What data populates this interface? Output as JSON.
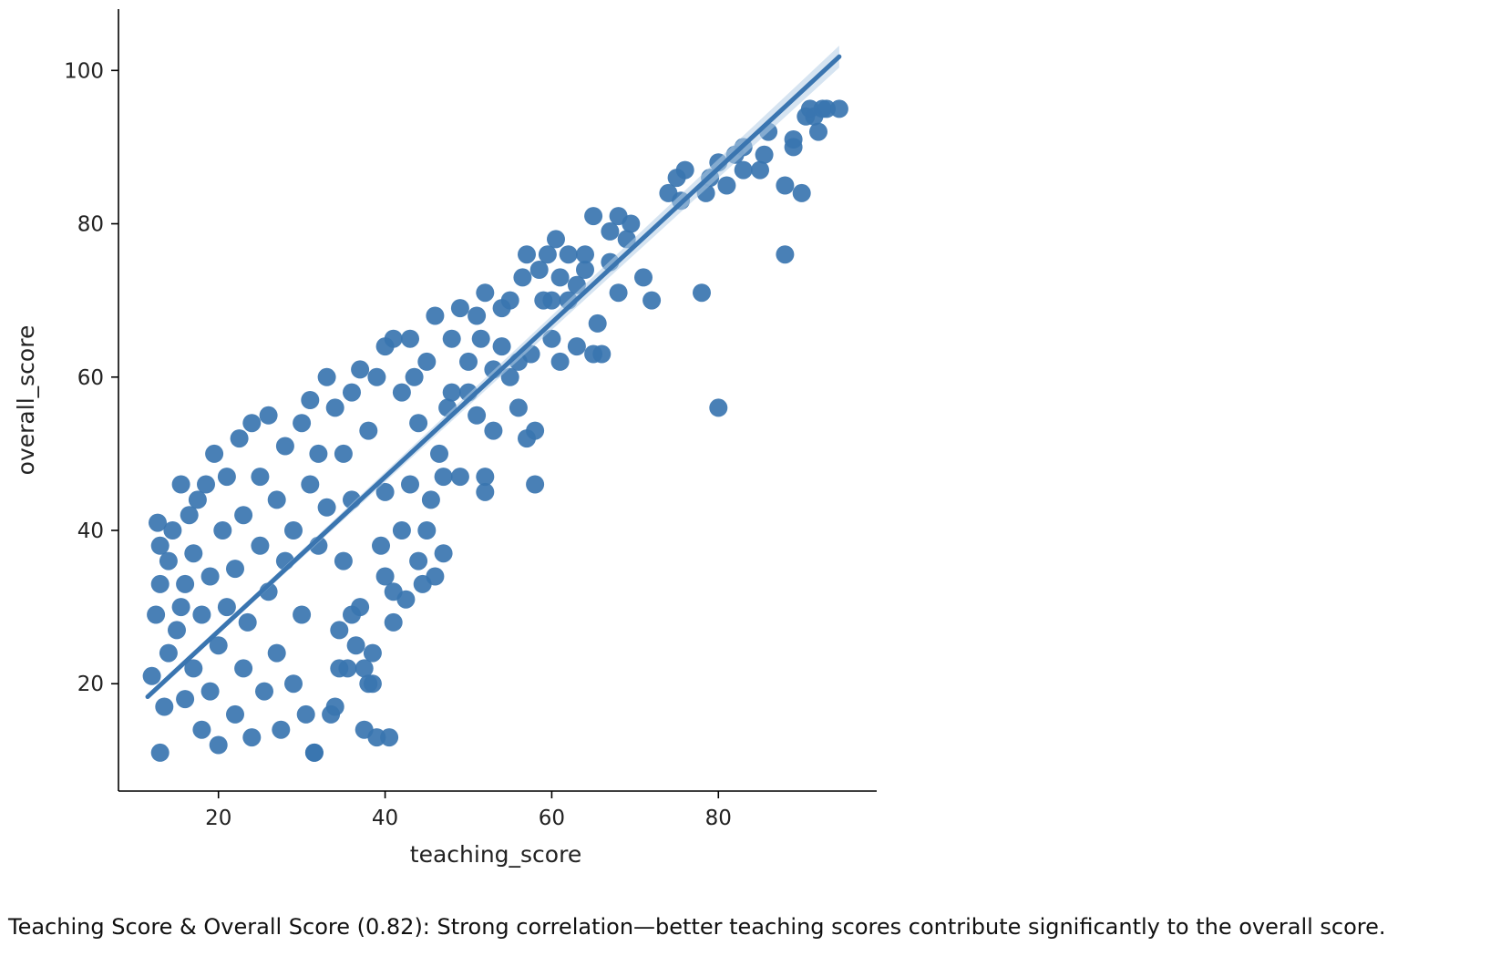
{
  "caption": "Teaching Score & Overall Score (0.82): Strong correlation—better teaching scores contribute significantly to the overall score.",
  "colors": {
    "points": "#3a75b0",
    "line": "#3a75b0",
    "band": "#b5cde5",
    "axis": "#000000"
  },
  "chart_data": {
    "type": "scatter",
    "title": "",
    "xlabel": "teaching_score",
    "ylabel": "overall_score",
    "xlim": [
      8,
      99
    ],
    "ylim": [
      6,
      108
    ],
    "xticks": [
      20,
      40,
      60,
      80
    ],
    "yticks": [
      20,
      40,
      60,
      80,
      100
    ],
    "grid": false,
    "legend": "none",
    "regression_line": {
      "x": [
        11.5,
        94.5
      ],
      "y": [
        18.3,
        101.8
      ]
    },
    "sample_points": [
      [
        12,
        21
      ],
      [
        12.5,
        29
      ],
      [
        12.7,
        41
      ],
      [
        13,
        33
      ],
      [
        13,
        38
      ],
      [
        13.5,
        17
      ],
      [
        13,
        11
      ],
      [
        14,
        24
      ],
      [
        14,
        36
      ],
      [
        14.5,
        40
      ],
      [
        15,
        27
      ],
      [
        15.5,
        30
      ],
      [
        15.5,
        46
      ],
      [
        16,
        18
      ],
      [
        16,
        33
      ],
      [
        16.5,
        42
      ],
      [
        17,
        22
      ],
      [
        17,
        37
      ],
      [
        17.5,
        44
      ],
      [
        18,
        14
      ],
      [
        18,
        29
      ],
      [
        18.5,
        46
      ],
      [
        19,
        19
      ],
      [
        19,
        34
      ],
      [
        19.5,
        50
      ],
      [
        20,
        12
      ],
      [
        20,
        25
      ],
      [
        20.5,
        40
      ],
      [
        21,
        30
      ],
      [
        21,
        47
      ],
      [
        22,
        16
      ],
      [
        22,
        35
      ],
      [
        22.5,
        52
      ],
      [
        23,
        22
      ],
      [
        23,
        42
      ],
      [
        23.5,
        28
      ],
      [
        24,
        54
      ],
      [
        24,
        13
      ],
      [
        25,
        38
      ],
      [
        25,
        47
      ],
      [
        25.5,
        19
      ],
      [
        26,
        32
      ],
      [
        26,
        55
      ],
      [
        27,
        24
      ],
      [
        27,
        44
      ],
      [
        27.5,
        14
      ],
      [
        28,
        36
      ],
      [
        28,
        51
      ],
      [
        29,
        20
      ],
      [
        29,
        40
      ],
      [
        30,
        54
      ],
      [
        30,
        29
      ],
      [
        30.5,
        16
      ],
      [
        31,
        46
      ],
      [
        31,
        57
      ],
      [
        31.5,
        11
      ],
      [
        32,
        38
      ],
      [
        32,
        50
      ],
      [
        33,
        43
      ],
      [
        33,
        60
      ],
      [
        33.5,
        16
      ],
      [
        34,
        17
      ],
      [
        34,
        56
      ],
      [
        34.5,
        27
      ],
      [
        35,
        50
      ],
      [
        35,
        36
      ],
      [
        35.5,
        22
      ],
      [
        36,
        58
      ],
      [
        36,
        44
      ],
      [
        36.5,
        25
      ],
      [
        37,
        61
      ],
      [
        37,
        30
      ],
      [
        37.5,
        14
      ],
      [
        38,
        20
      ],
      [
        38,
        53
      ],
      [
        38.5,
        24
      ],
      [
        39,
        13
      ],
      [
        39,
        60
      ],
      [
        39.5,
        38
      ],
      [
        40,
        64
      ],
      [
        40,
        45
      ],
      [
        40.5,
        13
      ],
      [
        41,
        32
      ],
      [
        41,
        28
      ],
      [
        41,
        65
      ],
      [
        42,
        40
      ],
      [
        42,
        58
      ],
      [
        42.5,
        31
      ],
      [
        43,
        46
      ],
      [
        43,
        65
      ],
      [
        43.5,
        60
      ],
      [
        44,
        36
      ],
      [
        44,
        54
      ],
      [
        44.5,
        33
      ],
      [
        45,
        40
      ],
      [
        45,
        62
      ],
      [
        45.5,
        44
      ],
      [
        46,
        34
      ],
      [
        46,
        68
      ],
      [
        46.5,
        50
      ],
      [
        47,
        37
      ],
      [
        47,
        47
      ],
      [
        47.5,
        56
      ],
      [
        48,
        65
      ],
      [
        48,
        58
      ],
      [
        49,
        69
      ],
      [
        49,
        47
      ],
      [
        50,
        62
      ],
      [
        50,
        58
      ],
      [
        51,
        68
      ],
      [
        51,
        55
      ],
      [
        51.5,
        65
      ],
      [
        52,
        71
      ],
      [
        52,
        47
      ],
      [
        52,
        45
      ],
      [
        53,
        61
      ],
      [
        53,
        53
      ],
      [
        54,
        64
      ],
      [
        54,
        69
      ],
      [
        55,
        60
      ],
      [
        55,
        70
      ],
      [
        56,
        62
      ],
      [
        56,
        56
      ],
      [
        56.5,
        73
      ],
      [
        57,
        52
      ],
      [
        57,
        76
      ],
      [
        57.5,
        63
      ],
      [
        58,
        46
      ],
      [
        58,
        53
      ],
      [
        58.5,
        74
      ],
      [
        59,
        70
      ],
      [
        59.5,
        76
      ],
      [
        60,
        70
      ],
      [
        60,
        65
      ],
      [
        60.5,
        78
      ],
      [
        61,
        62
      ],
      [
        61,
        73
      ],
      [
        62,
        76
      ],
      [
        62,
        70
      ],
      [
        63,
        72
      ],
      [
        63,
        64
      ],
      [
        64,
        74
      ],
      [
        64,
        76
      ],
      [
        65,
        63
      ],
      [
        65,
        81
      ],
      [
        65.5,
        67
      ],
      [
        66,
        63
      ],
      [
        67,
        79
      ],
      [
        67,
        75
      ],
      [
        68,
        71
      ],
      [
        68,
        81
      ],
      [
        69,
        78
      ],
      [
        69.5,
        80
      ],
      [
        71,
        73
      ],
      [
        72,
        70
      ],
      [
        74,
        84
      ],
      [
        75,
        86
      ],
      [
        75.5,
        83
      ],
      [
        76,
        87
      ],
      [
        78,
        71
      ],
      [
        78.5,
        84
      ],
      [
        79,
        86
      ],
      [
        80,
        88
      ],
      [
        80,
        56
      ],
      [
        81,
        85
      ],
      [
        82,
        89
      ],
      [
        83,
        87
      ],
      [
        83,
        90
      ],
      [
        85,
        87
      ],
      [
        85.5,
        89
      ],
      [
        86,
        92
      ],
      [
        88,
        85
      ],
      [
        88,
        76
      ],
      [
        89,
        91
      ],
      [
        89,
        90
      ],
      [
        90,
        84
      ],
      [
        90.5,
        94
      ],
      [
        91,
        95
      ],
      [
        91.5,
        94
      ],
      [
        92,
        92
      ],
      [
        92.5,
        95
      ],
      [
        93,
        95
      ],
      [
        94.5,
        95
      ],
      [
        31.5,
        11
      ],
      [
        34.5,
        22
      ],
      [
        37.5,
        22
      ],
      [
        38.5,
        20
      ],
      [
        36,
        29
      ],
      [
        40,
        34
      ]
    ]
  }
}
